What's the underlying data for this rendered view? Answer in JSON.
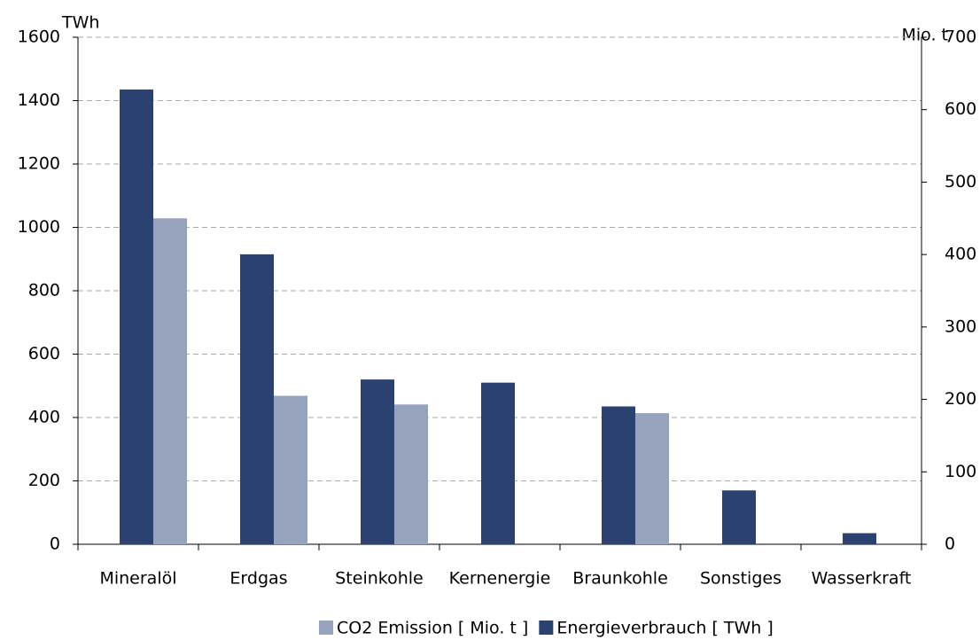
{
  "chart_data": {
    "type": "bar",
    "categories": [
      "Mineralöl",
      "Erdgas",
      "Steinkohle",
      "Kernenergie",
      "Braunkohle",
      "Sonstiges",
      "Wasserkraft"
    ],
    "series": [
      {
        "name": "CO2 Emission [ Mio. t ]",
        "color": "#97a3bc",
        "axis": "y2",
        "values": [
          450,
          205,
          193,
          null,
          181,
          null,
          null
        ]
      },
      {
        "name": "Energieverbrauch [ TWh ]",
        "color": "#2b4170",
        "values": [
          1435,
          915,
          520,
          510,
          435,
          170,
          35
        ]
      }
    ],
    "ylabel": "TWh",
    "y2label": "Mio. t",
    "ylim": [
      0,
      1600
    ],
    "yticks": [
      0,
      200,
      400,
      600,
      800,
      1000,
      1200,
      1400,
      1600
    ],
    "y2lim": [
      0,
      700
    ],
    "y2ticks": [
      0,
      100,
      200,
      300,
      400,
      500,
      600,
      700
    ],
    "grid": true,
    "legend": "bottom"
  }
}
